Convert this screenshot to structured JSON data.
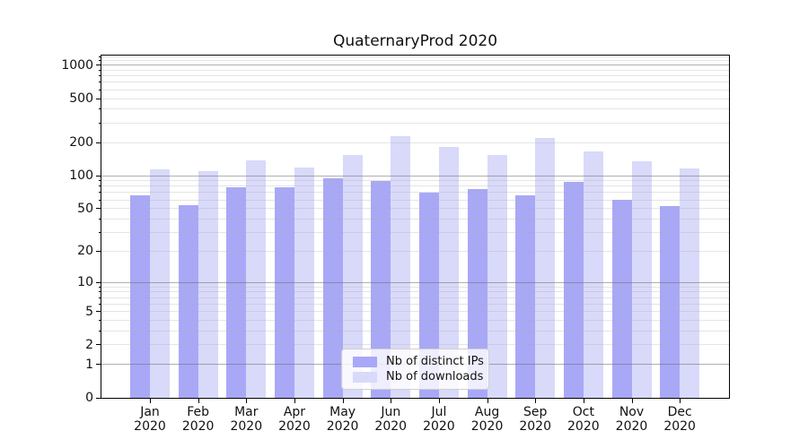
{
  "chart_data": {
    "type": "bar",
    "title": "QuaternaryProd 2020",
    "xlabel": "",
    "ylabel": "",
    "year": "2020",
    "categories": [
      "Jan",
      "Feb",
      "Mar",
      "Apr",
      "May",
      "Jun",
      "Jul",
      "Aug",
      "Sep",
      "Oct",
      "Nov",
      "Dec"
    ],
    "series": [
      {
        "name": "Nb of distinct IPs",
        "color": "#a8a8f7",
        "values": [
          66,
          54,
          78,
          78,
          94,
          90,
          70,
          75,
          66,
          87,
          60,
          53
        ]
      },
      {
        "name": "Nb of downloads",
        "color": "#d9d9fa",
        "values": [
          114,
          111,
          137,
          118,
          155,
          228,
          181,
          155,
          220,
          165,
          135,
          117
        ]
      }
    ],
    "yscale": "log1p",
    "ylim": [
      0,
      1226
    ],
    "yticks": [
      1000,
      500,
      200,
      100,
      50,
      20,
      10,
      5,
      2,
      1,
      0
    ],
    "grid": {
      "major": [
        1,
        10,
        100,
        1000
      ],
      "minor": [
        2,
        3,
        4,
        5,
        6,
        7,
        8,
        9,
        20,
        30,
        40,
        50,
        60,
        70,
        80,
        90,
        200,
        300,
        400,
        500,
        600,
        700,
        800,
        900,
        1100,
        1200
      ]
    },
    "legend_position": "lower center (inside plot)",
    "grid_drawn_above_bars": true
  },
  "colors": {
    "background": "#ffffff",
    "axis": "#000000",
    "text": "#111111",
    "major_grid": "#9e9e9e",
    "minor_grid": "#e2e2e2"
  }
}
